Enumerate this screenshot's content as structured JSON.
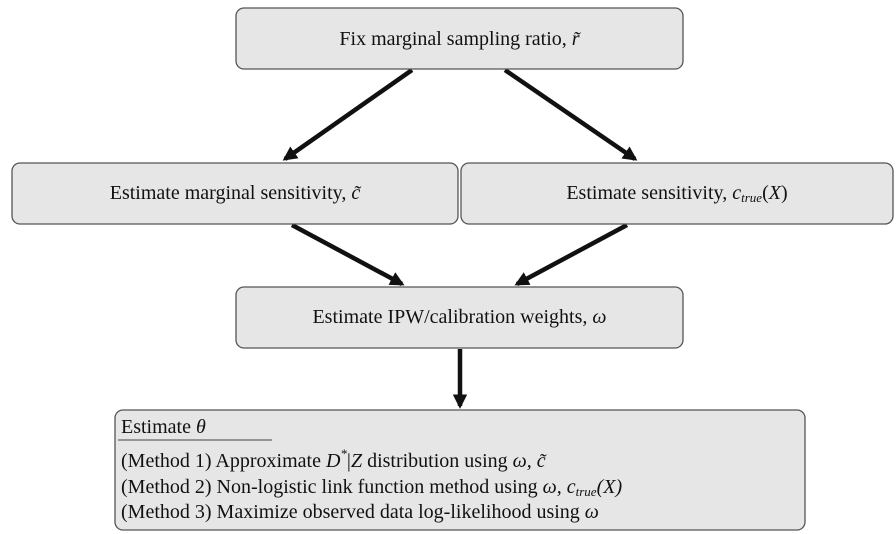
{
  "nodes": [
    {
      "label": [
        "Fix marginal sampling ratio, ",
        "r̃"
      ]
    },
    {
      "label": [
        "Estimate marginal sensitivity, ",
        "c̃"
      ]
    },
    {
      "label": [
        "Estimate sensitivity, ",
        "c",
        "true",
        "(",
        "X",
        ")"
      ]
    },
    {
      "label": [
        "Estimate IPW/calibration weights, ",
        "ω"
      ]
    },
    {
      "title": [
        "Estimate ",
        "θ"
      ],
      "lines": [
        [
          "(Method 1) Approximate ",
          "D",
          "*",
          "|",
          "Z",
          " distribution using ",
          "ω, c̃"
        ],
        [
          "(Method 2) Non-logistic link function method using ",
          "ω, c",
          "true",
          "(X)"
        ],
        [
          "(Method 3) Maximize observed data log-likelihood using ",
          "ω"
        ]
      ]
    }
  ]
}
